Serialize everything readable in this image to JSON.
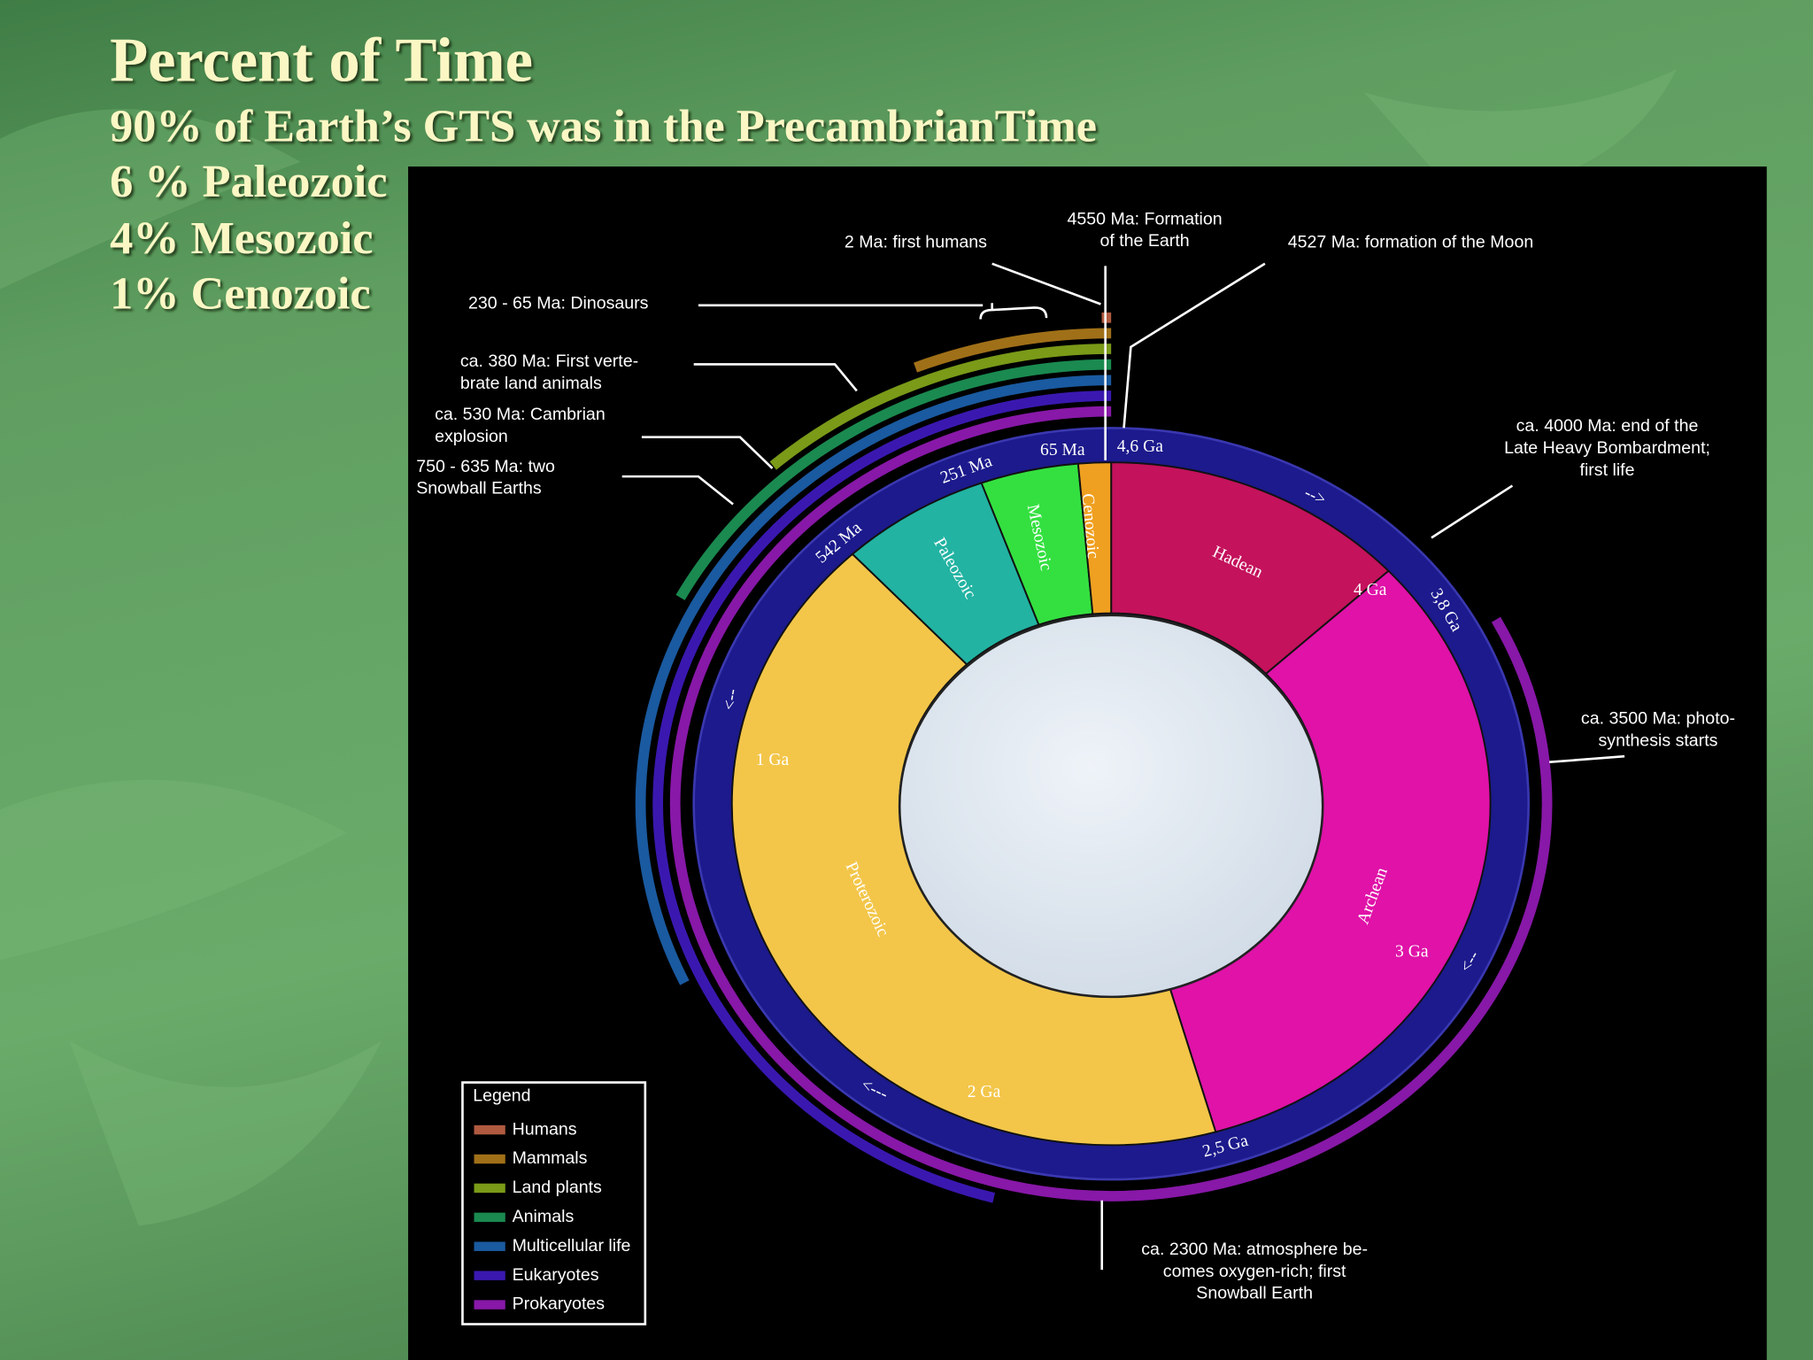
{
  "slide": {
    "title": "Percent of Time",
    "lines": [
      "90% of Earth’s GTS was in the PrecambrianTime",
      "6 % Paleozoic",
      "4% Mesozoic",
      "1% Cenozoic"
    ]
  },
  "diagram": {
    "eras": [
      "Hadean",
      "Archean",
      "Proterozoic",
      "Paleozoic",
      "Mesozoic",
      "Cenozoic"
    ],
    "ring_labels": [
      "4,6 Ga",
      "65 Ma",
      "251 Ma",
      "542 Ma",
      "1 Ga",
      "2 Ga",
      "2,5 Ga",
      "3 Ga",
      "3,8 Ga",
      "4 Ga"
    ],
    "arrows": [
      "-->",
      "<--",
      "<---",
      "<--"
    ],
    "annotations": [
      [
        "2 Ma: first humans"
      ],
      [
        "4550 Ma: Formation",
        "of the Earth"
      ],
      [
        "4527 Ma: formation of the Moon"
      ],
      [
        "230 - 65 Ma: Dinosaurs"
      ],
      [
        "ca. 380 Ma: First verte-",
        "brate land animals"
      ],
      [
        "ca. 530 Ma: Cambrian",
        "explosion"
      ],
      [
        "750 - 635 Ma: two",
        "Snowball Earths"
      ],
      [
        "ca. 4000 Ma: end of the",
        "Late Heavy Bombardment;",
        "first life"
      ],
      [
        "ca. 3500 Ma: photo-",
        "synthesis starts"
      ],
      [
        "ca. 2300 Ma: atmosphere be-",
        "comes oxygen-rich; first",
        "Snowball Earth"
      ]
    ],
    "legend": {
      "title": "Legend",
      "items": [
        {
          "label": "Humans",
          "color": "#b05a40"
        },
        {
          "label": "Mammals",
          "color": "#a07018"
        },
        {
          "label": "Land plants",
          "color": "#7a9a18"
        },
        {
          "label": "Animals",
          "color": "#1a8a50"
        },
        {
          "label": "Multicellular life",
          "color": "#1a5aa0"
        },
        {
          "label": "Eukaryotes",
          "color": "#3a18b0"
        },
        {
          "label": "Prokaryotes",
          "color": "#8818a8"
        }
      ]
    }
  }
}
